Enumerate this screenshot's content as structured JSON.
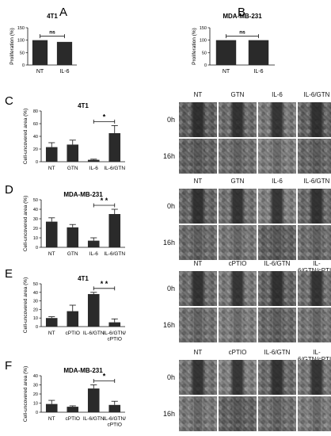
{
  "chart_data": [
    {
      "id": "A",
      "type": "bar",
      "panel_label": "A",
      "title": "4T1",
      "categories": [
        "NT",
        "IL-6"
      ],
      "values": [
        100,
        93
      ],
      "errors": [
        0,
        0
      ],
      "ylabel": "Proliferation (%)",
      "ylim": [
        0,
        150
      ],
      "yticks": [
        0,
        50,
        100,
        150
      ],
      "significance": [
        {
          "from": 0,
          "to": 1,
          "label": "ns"
        }
      ]
    },
    {
      "id": "B",
      "type": "bar",
      "panel_label": "B",
      "title": "MDA-MB-231",
      "categories": [
        "NT",
        "IL-6"
      ],
      "values": [
        100,
        100
      ],
      "errors": [
        0,
        0
      ],
      "ylabel": "Proliferation (%)",
      "ylim": [
        0,
        150
      ],
      "yticks": [
        0,
        50,
        100,
        150
      ],
      "significance": [
        {
          "from": 0,
          "to": 1,
          "label": "ns"
        }
      ]
    },
    {
      "id": "C",
      "type": "bar",
      "panel_label": "C",
      "title": "4T1",
      "categories": [
        "NT",
        "GTN",
        "IL-6",
        "IL-6/GTN"
      ],
      "values": [
        23,
        27,
        3,
        45
      ],
      "errors": [
        7,
        7,
        1,
        12
      ],
      "ylabel": "Cell-uncovered area (%)",
      "ylim": [
        0,
        80
      ],
      "yticks": [
        0,
        20,
        40,
        60,
        80
      ],
      "significance": [
        {
          "from": 2,
          "to": 3,
          "label": "*"
        }
      ]
    },
    {
      "id": "D",
      "type": "bar",
      "panel_label": "D",
      "title": "MDA-MB-231",
      "categories": [
        "NT",
        "GTN",
        "IL-6",
        "IL-6/GTN"
      ],
      "values": [
        27,
        21,
        7,
        35
      ],
      "errors": [
        4,
        3,
        3,
        5
      ],
      "ylabel": "Cell-uncovered area (%)",
      "ylim": [
        0,
        50
      ],
      "yticks": [
        0,
        10,
        20,
        30,
        40,
        50
      ],
      "significance": [
        {
          "from": 2,
          "to": 3,
          "label": "* *"
        }
      ]
    },
    {
      "id": "E",
      "type": "bar",
      "panel_label": "E",
      "title": "4T1",
      "categories": [
        "NT",
        "cPTIO",
        "IL-6/GTN",
        "IL-6/GTN/ cPTIO"
      ],
      "values": [
        10,
        18,
        38,
        5
      ],
      "errors": [
        1.5,
        7,
        2,
        4
      ],
      "ylabel": "Cell-uncovered area (%)",
      "ylim": [
        0,
        50
      ],
      "yticks": [
        0,
        10,
        20,
        30,
        40,
        50
      ],
      "significance": [
        {
          "from": 2,
          "to": 3,
          "label": "* *"
        }
      ]
    },
    {
      "id": "F",
      "type": "bar",
      "panel_label": "F",
      "title": "MDA-MB-231",
      "categories": [
        "NT",
        "cPTIO",
        "IL-6/GTN",
        "IL-6/GTN/ cPTIO"
      ],
      "values": [
        9,
        6,
        26,
        8
      ],
      "errors": [
        4,
        1,
        4,
        4
      ],
      "ylabel": "Cell-uncovered area (%)",
      "ylim": [
        0,
        40
      ],
      "yticks": [
        0,
        10,
        20,
        30,
        40
      ],
      "significance": [
        {
          "from": 2,
          "to": 3,
          "label": "*"
        }
      ]
    }
  ],
  "micrographs": [
    {
      "id": "C",
      "columns": [
        "NT",
        "GTN",
        "IL-6",
        "IL-6/GTN"
      ],
      "rows": [
        "0h",
        "16h"
      ]
    },
    {
      "id": "D",
      "columns": [
        "NT",
        "GTN",
        "IL-6",
        "IL-6/GTN"
      ],
      "rows": [
        "0h",
        "16h"
      ]
    },
    {
      "id": "E",
      "columns": [
        "NT",
        "cPTIO",
        "IL-6/GTN",
        "IL-6/GTN/cPTIO"
      ],
      "rows": [
        "0h",
        "16h"
      ]
    },
    {
      "id": "F",
      "columns": [
        "NT",
        "cPTIO",
        "IL-6/GTN",
        "IL-6/GTN/cPTIO"
      ],
      "rows": [
        "0h",
        "16h"
      ]
    }
  ]
}
